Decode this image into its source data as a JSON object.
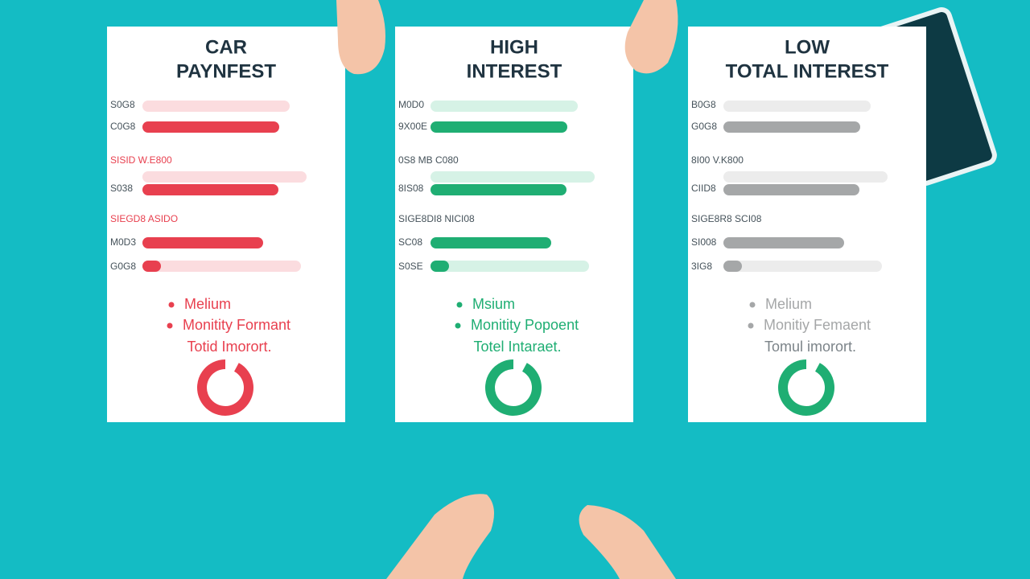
{
  "cards": [
    {
      "title": [
        "CAR",
        "PAYNFEST"
      ],
      "color": "#e8404f",
      "light": "#fbdcdf",
      "rows": [
        "S0G8",
        "C0G8",
        "SISID W.E800",
        "S038",
        "SIEGD8 ASIDO",
        "M0D3",
        "G0G8"
      ],
      "bullets": [
        "Melium",
        "Monitity Formant"
      ],
      "note": "Totid Imorort."
    },
    {
      "title": [
        "HIGH",
        "INTEREST"
      ],
      "color": "#1fae73",
      "light": "#d6f2e6",
      "rows": [
        "M0D0",
        "9X00E",
        "0S8 MB C080",
        "8IS08",
        "SIGE8DI8 NICI08",
        "SC08",
        "S0SE"
      ],
      "bullets": [
        "Msium",
        "Monitity Popoent"
      ],
      "note": "Totel Intaraet."
    },
    {
      "title": [
        "LOW",
        "TOTAL INTEREST"
      ],
      "color": "#a5a7a8",
      "light": "#ececec",
      "rows": [
        "B0G8",
        "G0G8",
        "8I00 V.K800",
        "CIID8",
        "SIGE8R8 SCI08",
        "SI008",
        "3IG8"
      ],
      "bullets": [
        "Melium",
        "Monitiy Femaent"
      ],
      "note": "Tomul imorort."
    }
  ]
}
